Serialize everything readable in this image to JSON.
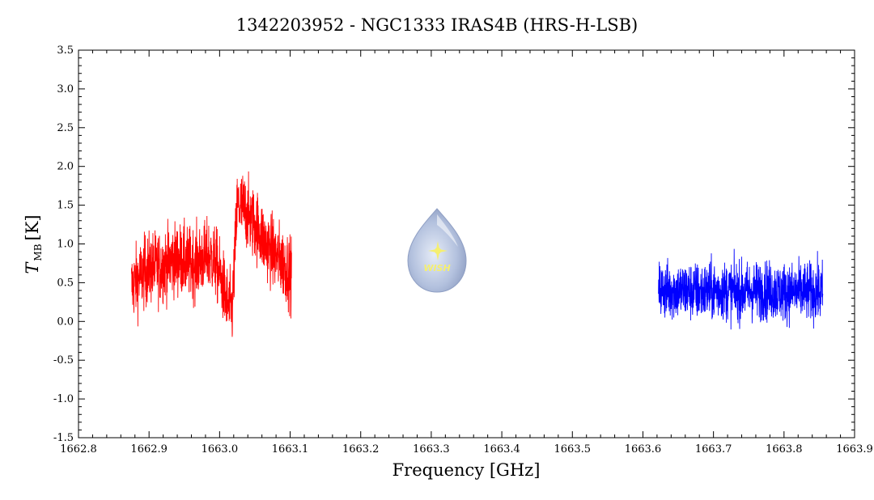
{
  "chart_data": {
    "type": "line",
    "title": "1342203952 - NGC1333 IRAS4B (HRS-H-LSB)",
    "xlabel": "Frequency [GHz]",
    "ylabel": "T",
    "ylabel_sub": "MB",
    "ylabel_unit": "[K]",
    "xlim": [
      1662.8,
      1663.9
    ],
    "ylim": [
      -1.5,
      3.5
    ],
    "xticks": [
      "1662.8",
      "1662.9",
      "1663.0",
      "1663.1",
      "1663.2",
      "1663.3",
      "1663.4",
      "1663.5",
      "1663.6",
      "1663.7",
      "1663.8",
      "1663.9"
    ],
    "yticks": [
      "-1.5",
      "-1.0",
      "-0.5",
      "0.0",
      "0.5",
      "1.0",
      "1.5",
      "2.0",
      "2.5",
      "3.0",
      "3.5"
    ],
    "grid": false,
    "series": [
      {
        "color": "#ff0000",
        "x": [
          1662.875,
          1662.885,
          1662.895,
          1662.905,
          1662.915,
          1662.925,
          1662.935,
          1662.945,
          1662.955,
          1662.965,
          1662.975,
          1662.985,
          1662.995,
          1663.005,
          1663.012,
          1663.018,
          1663.025,
          1663.035,
          1663.045,
          1663.055,
          1663.065,
          1663.075,
          1663.085,
          1663.095,
          1663.102
        ],
        "values": [
          0.45,
          0.55,
          0.65,
          0.7,
          0.7,
          0.75,
          0.8,
          0.8,
          0.75,
          0.75,
          0.8,
          0.85,
          0.75,
          0.45,
          0.2,
          0.15,
          1.5,
          1.45,
          1.3,
          1.2,
          1.0,
          0.9,
          0.8,
          0.7,
          0.6
        ],
        "noise": 0.55
      },
      {
        "color": "#0000ff",
        "x": [
          1663.622,
          1663.65,
          1663.68,
          1663.71,
          1663.74,
          1663.77,
          1663.8,
          1663.83,
          1663.855
        ],
        "values": [
          0.4,
          0.4,
          0.38,
          0.4,
          0.38,
          0.4,
          0.38,
          0.38,
          0.38
        ],
        "noise": 0.45
      }
    ]
  },
  "logo": {
    "text": "WISH",
    "drop_color": "#a9b9d8",
    "star_color": "#f5ef70"
  }
}
